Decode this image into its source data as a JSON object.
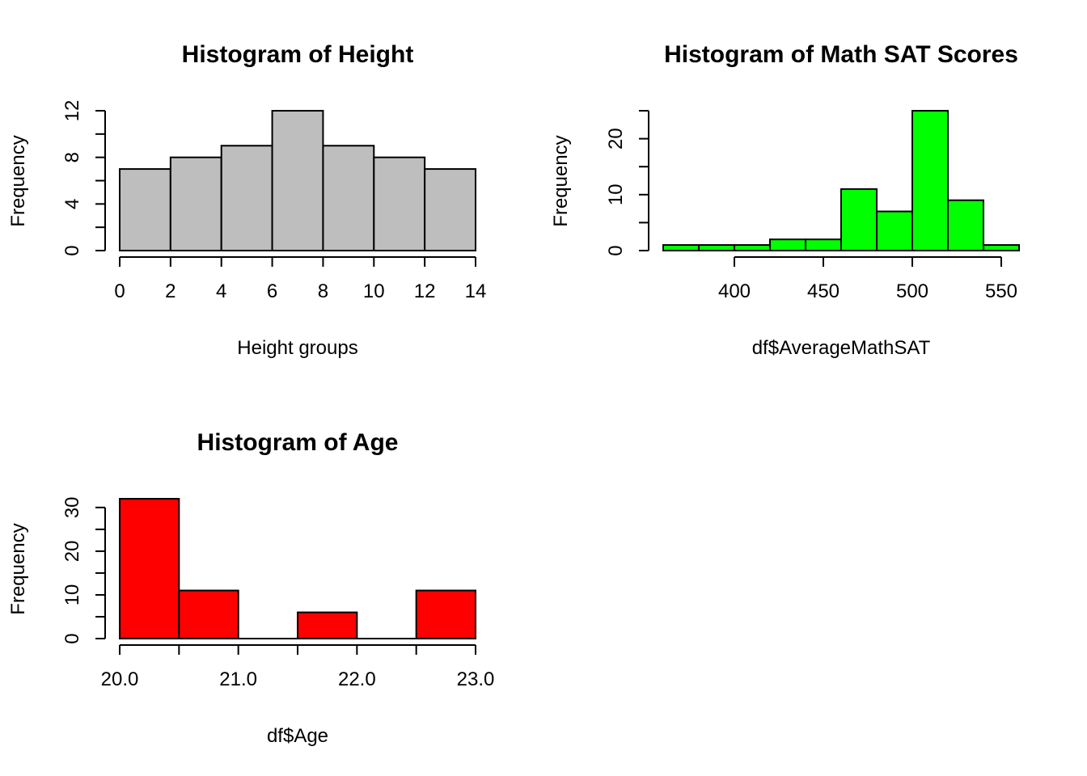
{
  "chart_data": [
    {
      "type": "bar",
      "title": "Histogram of Height",
      "xlabel": "Height groups",
      "ylabel": "Frequency",
      "bar_color": "#BEBEBE",
      "bins": [
        [
          0,
          2
        ],
        [
          2,
          4
        ],
        [
          4,
          6
        ],
        [
          6,
          8
        ],
        [
          8,
          10
        ],
        [
          10,
          12
        ],
        [
          12,
          14
        ]
      ],
      "values": [
        7,
        8,
        9,
        12,
        9,
        8,
        7
      ],
      "xlim": [
        0,
        14
      ],
      "ylim": [
        0,
        12
      ],
      "x_ticks": [
        0,
        2,
        4,
        6,
        8,
        10,
        12,
        14
      ],
      "x_tick_labels": [
        "0",
        "2",
        "4",
        "6",
        "8",
        "10",
        "12",
        "14"
      ],
      "y_ticks": [
        0,
        2,
        4,
        6,
        8,
        10,
        12
      ],
      "y_tick_labels": [
        "0",
        "",
        "4",
        "",
        "8",
        "",
        "12"
      ],
      "grid": false
    },
    {
      "type": "bar",
      "title": "Histogram of Math SAT Scores",
      "xlabel": "df$AverageMathSAT",
      "ylabel": "Frequency",
      "bar_color": "#00FF00",
      "bins": [
        [
          360,
          380
        ],
        [
          380,
          400
        ],
        [
          400,
          420
        ],
        [
          420,
          440
        ],
        [
          440,
          460
        ],
        [
          460,
          480
        ],
        [
          480,
          500
        ],
        [
          500,
          520
        ],
        [
          520,
          540
        ],
        [
          540,
          560
        ]
      ],
      "values": [
        1,
        1,
        1,
        2,
        2,
        11,
        7,
        25,
        9,
        1
      ],
      "xlim": [
        360,
        560
      ],
      "ylim": [
        0,
        25
      ],
      "x_ticks": [
        400,
        450,
        500,
        550
      ],
      "x_tick_labels": [
        "400",
        "450",
        "500",
        "550"
      ],
      "y_ticks": [
        0,
        5,
        10,
        15,
        20,
        25
      ],
      "y_tick_labels": [
        "0",
        "",
        "10",
        "",
        "20",
        ""
      ],
      "grid": false
    },
    {
      "type": "bar",
      "title": "Histogram of Age",
      "xlabel": "df$Age",
      "ylabel": "Frequency",
      "bar_color": "#FF0000",
      "bins": [
        [
          20.0,
          20.5
        ],
        [
          20.5,
          21.0
        ],
        [
          21.0,
          21.5
        ],
        [
          21.5,
          22.0
        ],
        [
          22.0,
          22.5
        ],
        [
          22.5,
          23.0
        ]
      ],
      "values": [
        32,
        11,
        0,
        6,
        0,
        11
      ],
      "xlim": [
        20.0,
        23.0
      ],
      "ylim": [
        0,
        32
      ],
      "x_ticks": [
        20.0,
        20.5,
        21.0,
        21.5,
        22.0,
        22.5,
        23.0
      ],
      "x_tick_labels": [
        "20.0",
        "",
        "21.0",
        "",
        "22.0",
        "",
        "23.0"
      ],
      "y_ticks": [
        0,
        5,
        10,
        15,
        20,
        25,
        30
      ],
      "y_tick_labels": [
        "0",
        "",
        "10",
        "",
        "20",
        "",
        "30"
      ],
      "grid": false
    }
  ]
}
